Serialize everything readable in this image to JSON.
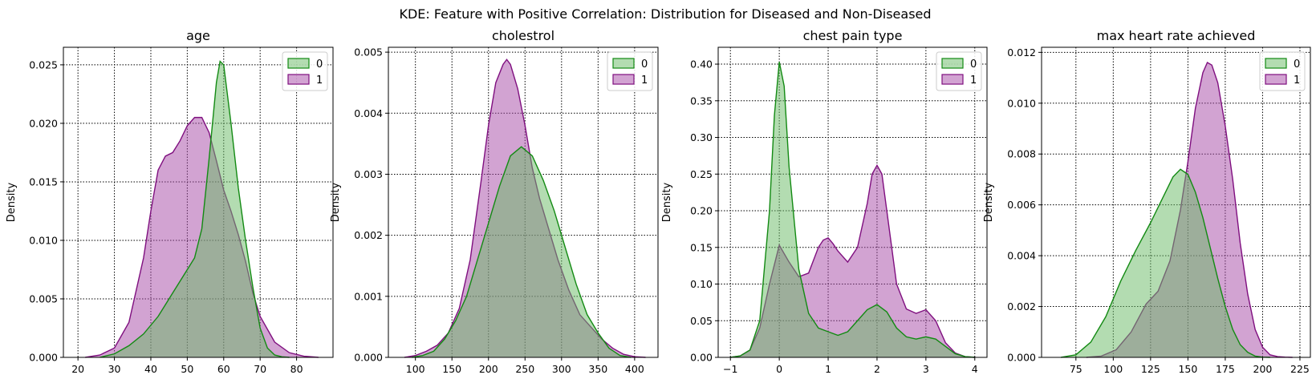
{
  "figure": {
    "suptitle": "KDE: Feature with Positive Correlation: Distribution for Diseased and Non-Diseased",
    "series_colors": {
      "0": "#138a13",
      "1": "#7f0f7f"
    },
    "series_fills": {
      "0": "#68ba64",
      "1": "#a648a6"
    },
    "fill_alpha": 0.5
  },
  "chart_data": [
    {
      "type": "area",
      "title": "age",
      "xlabel": "",
      "ylabel": "Density",
      "xlim": [
        16,
        90
      ],
      "ylim": [
        0,
        0.0265
      ],
      "xticks": [
        20,
        30,
        40,
        50,
        60,
        70,
        80
      ],
      "xtick_labels": [
        "20",
        "30",
        "40",
        "50",
        "60",
        "70",
        "80"
      ],
      "yticks": [
        0,
        0.005,
        0.01,
        0.015,
        0.02,
        0.025
      ],
      "ytick_labels": [
        "0.000",
        "0.005",
        "0.010",
        "0.015",
        "0.020",
        "0.025"
      ],
      "grid": true,
      "legend": {
        "position": "top-right",
        "entries": [
          "0",
          "1"
        ]
      },
      "series": [
        {
          "name": "0",
          "x": [
            26,
            30,
            34,
            38,
            42,
            46,
            50,
            52,
            54,
            56,
            58,
            59,
            60,
            62,
            64,
            66,
            68,
            70,
            72,
            74,
            76,
            78
          ],
          "y": [
            0,
            0.0003,
            0.001,
            0.002,
            0.0035,
            0.0055,
            0.0075,
            0.0085,
            0.011,
            0.017,
            0.0235,
            0.0253,
            0.025,
            0.02,
            0.0145,
            0.01,
            0.006,
            0.0025,
            0.0008,
            0.0002,
            5e-05,
            0
          ]
        },
        {
          "name": "1",
          "x": [
            22,
            26,
            30,
            34,
            38,
            40,
            42,
            44,
            46,
            48,
            50,
            52,
            54,
            56,
            58,
            60,
            62,
            64,
            66,
            68,
            70,
            74,
            78,
            82,
            86
          ],
          "y": [
            0,
            0.0002,
            0.0008,
            0.003,
            0.0085,
            0.0125,
            0.016,
            0.0172,
            0.0175,
            0.0185,
            0.0198,
            0.0205,
            0.0205,
            0.0192,
            0.0168,
            0.0143,
            0.0125,
            0.0105,
            0.0082,
            0.0055,
            0.0035,
            0.0013,
            0.0004,
            0.0001,
            0
          ]
        }
      ]
    },
    {
      "type": "area",
      "title": "cholestrol",
      "xlabel": "",
      "ylabel": "Density",
      "xlim": [
        63,
        432
      ],
      "ylim": [
        0,
        0.00508
      ],
      "xticks": [
        100,
        150,
        200,
        250,
        300,
        350,
        400
      ],
      "xtick_labels": [
        "100",
        "150",
        "200",
        "250",
        "300",
        "350",
        "400"
      ],
      "yticks": [
        0,
        0.001,
        0.002,
        0.003,
        0.004,
        0.005
      ],
      "ytick_labels": [
        "0.000",
        "0.001",
        "0.002",
        "0.003",
        "0.004",
        "0.005"
      ],
      "grid": true,
      "legend": {
        "position": "top-right",
        "entries": [
          "0",
          "1"
        ]
      },
      "series": [
        {
          "name": "0",
          "x": [
            95,
            110,
            125,
            140,
            155,
            170,
            185,
            200,
            215,
            230,
            245,
            260,
            275,
            290,
            305,
            320,
            335,
            350,
            365,
            380,
            395
          ],
          "y": [
            0,
            3e-05,
            0.0001,
            0.0003,
            0.0006,
            0.001,
            0.0016,
            0.0022,
            0.0028,
            0.0033,
            0.00345,
            0.0033,
            0.0029,
            0.0024,
            0.0018,
            0.0012,
            0.0007,
            0.0004,
            0.00015,
            3e-05,
            0
          ]
        },
        {
          "name": "1",
          "x": [
            85,
            100,
            115,
            130,
            145,
            160,
            175,
            190,
            200,
            210,
            220,
            225,
            230,
            240,
            250,
            260,
            270,
            280,
            295,
            310,
            325,
            340,
            355,
            370,
            385,
            400,
            415
          ],
          "y": [
            0,
            3e-05,
            0.0001,
            0.0002,
            0.0004,
            0.0008,
            0.0016,
            0.0029,
            0.0038,
            0.0045,
            0.0048,
            0.00488,
            0.0048,
            0.0044,
            0.0038,
            0.0031,
            0.0026,
            0.0022,
            0.0016,
            0.0011,
            0.0007,
            0.0005,
            0.0003,
            0.00015,
            5e-05,
            1e-05,
            0
          ]
        }
      ]
    },
    {
      "type": "area",
      "title": "chest pain type",
      "xlabel": "",
      "ylabel": "Density",
      "xlim": [
        -1.25,
        4.25
      ],
      "ylim": [
        0,
        0.423
      ],
      "xticks": [
        -1,
        0,
        1,
        2,
        3,
        4
      ],
      "xtick_labels": [
        "−1",
        "0",
        "1",
        "2",
        "3",
        "4"
      ],
      "yticks": [
        0,
        0.05,
        0.1,
        0.15,
        0.2,
        0.25,
        0.3,
        0.35,
        0.4
      ],
      "ytick_labels": [
        "0.00",
        "0.05",
        "0.10",
        "0.15",
        "0.20",
        "0.25",
        "0.30",
        "0.35",
        "0.40"
      ],
      "grid": true,
      "legend": {
        "position": "top-right",
        "entries": [
          "0",
          "1"
        ]
      },
      "series": [
        {
          "name": "0",
          "x": [
            -1,
            -0.8,
            -0.6,
            -0.4,
            -0.2,
            -0.1,
            0,
            0.1,
            0.2,
            0.4,
            0.6,
            0.8,
            1,
            1.2,
            1.4,
            1.6,
            1.8,
            2,
            2.2,
            2.4,
            2.6,
            2.8,
            3,
            3.2,
            3.4,
            3.6,
            3.8,
            4
          ],
          "y": [
            0,
            0.002,
            0.01,
            0.05,
            0.2,
            0.33,
            0.403,
            0.37,
            0.26,
            0.12,
            0.06,
            0.04,
            0.035,
            0.03,
            0.035,
            0.05,
            0.065,
            0.072,
            0.062,
            0.04,
            0.028,
            0.025,
            0.028,
            0.025,
            0.015,
            0.005,
            0.001,
            0
          ]
        },
        {
          "name": "1",
          "x": [
            -1,
            -0.8,
            -0.6,
            -0.4,
            -0.2,
            0,
            0.2,
            0.4,
            0.6,
            0.8,
            0.9,
            1,
            1.1,
            1.2,
            1.4,
            1.6,
            1.8,
            1.9,
            2,
            2.1,
            2.2,
            2.4,
            2.6,
            2.8,
            3,
            3.2,
            3.4,
            3.6,
            3.8,
            4
          ],
          "y": [
            0,
            0.002,
            0.01,
            0.04,
            0.1,
            0.153,
            0.13,
            0.11,
            0.115,
            0.15,
            0.16,
            0.163,
            0.155,
            0.145,
            0.13,
            0.15,
            0.21,
            0.25,
            0.262,
            0.25,
            0.2,
            0.1,
            0.066,
            0.06,
            0.065,
            0.05,
            0.02,
            0.006,
            0.001,
            0
          ]
        }
      ]
    },
    {
      "type": "area",
      "title": "max heart rate achieved",
      "xlabel": "",
      "ylabel": "Density",
      "xlim": [
        52,
        232
      ],
      "ylim": [
        0,
        0.0122
      ],
      "xticks": [
        75,
        100,
        125,
        150,
        175,
        200,
        225
      ],
      "xtick_labels": [
        "75",
        "100",
        "125",
        "150",
        "175",
        "200",
        "225"
      ],
      "yticks": [
        0,
        0.002,
        0.004,
        0.006,
        0.008,
        0.01,
        0.012
      ],
      "ytick_labels": [
        "0.000",
        "0.002",
        "0.004",
        "0.006",
        "0.008",
        "0.010",
        "0.012"
      ],
      "grid": true,
      "legend": {
        "position": "top-right",
        "entries": [
          "0",
          "1"
        ]
      },
      "series": [
        {
          "name": "0",
          "x": [
            65,
            75,
            85,
            95,
            105,
            115,
            125,
            135,
            140,
            145,
            150,
            155,
            160,
            165,
            170,
            175,
            180,
            185,
            190,
            195,
            200,
            205
          ],
          "y": [
            0,
            0.0001,
            0.0006,
            0.0016,
            0.003,
            0.0042,
            0.0053,
            0.0065,
            0.0071,
            0.0074,
            0.0072,
            0.0065,
            0.0055,
            0.0043,
            0.0031,
            0.002,
            0.0011,
            0.0005,
            0.0002,
            5e-05,
            1e-05,
            0
          ]
        },
        {
          "name": "1",
          "x": [
            82,
            92,
            102,
            112,
            122,
            130,
            138,
            145,
            150,
            155,
            160,
            163,
            166,
            170,
            175,
            180,
            185,
            190,
            195,
            200,
            205,
            210,
            215,
            220
          ],
          "y": [
            0,
            5e-05,
            0.0003,
            0.001,
            0.0021,
            0.0026,
            0.0038,
            0.0058,
            0.0077,
            0.0098,
            0.0112,
            0.0116,
            0.0115,
            0.0108,
            0.0091,
            0.007,
            0.0045,
            0.0025,
            0.0011,
            0.0004,
            0.0001,
            3e-05,
            1e-05,
            0
          ]
        }
      ]
    }
  ]
}
